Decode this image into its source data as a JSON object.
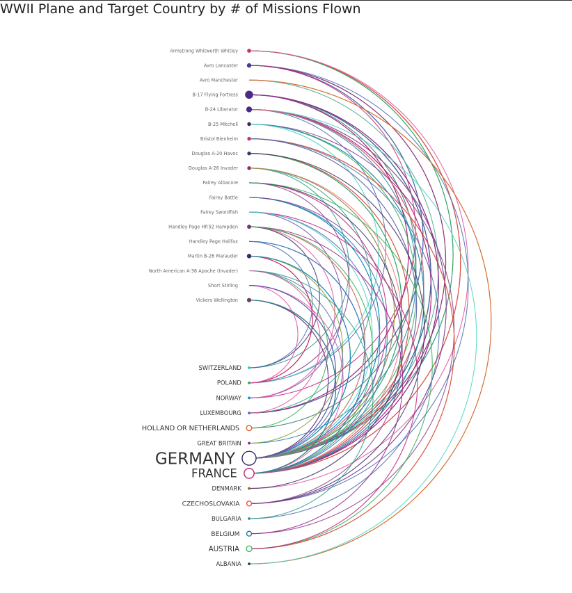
{
  "title": "WWII Plane and Target Country by # of Missions Flown",
  "chart_data": {
    "type": "arc-diagram",
    "title": "WWII Plane and Target Country by # of Missions Flown",
    "planes": [
      {
        "name": "Armstrong Whitworth Whitley",
        "missions": 3,
        "color": "#c0396b"
      },
      {
        "name": "Avro Lancaster",
        "missions": 5,
        "color": "#4b3b8f"
      },
      {
        "name": "Avro Manchester",
        "missions": 1,
        "color": "#c0396b"
      },
      {
        "name": "B-17 Flying Fortress",
        "missions": 40,
        "color": "#4b2a84"
      },
      {
        "name": "B-24 Liberator",
        "missions": 14,
        "color": "#4b2a84"
      },
      {
        "name": "B-25 Mitchell",
        "missions": 2,
        "color": "#3a2466"
      },
      {
        "name": "Bristol Blenheim",
        "missions": 2,
        "color": "#c0396b"
      },
      {
        "name": "Douglas A-20 Havoc",
        "missions": 2,
        "color": "#2e3d6b"
      },
      {
        "name": "Douglas A-26 Invader",
        "missions": 2,
        "color": "#8a2f6a"
      },
      {
        "name": "Fairey Albacore",
        "missions": 1,
        "color": "#ee6f72"
      },
      {
        "name": "Fairey Battle",
        "missions": 1,
        "color": "#8a3a8a"
      },
      {
        "name": "Fairey Swordfish",
        "missions": 1,
        "color": "#47d4c1"
      },
      {
        "name": "Handley Page HP.52 Hampden",
        "missions": 3,
        "color": "#6b3a6b"
      },
      {
        "name": "Handley Page Halifax",
        "missions": 1,
        "color": "#c0396b"
      },
      {
        "name": "Martin B-26 Marauder",
        "missions": 5,
        "color": "#3b2a66"
      },
      {
        "name": "North American A-36 Apache (Invader)",
        "missions": 1,
        "color": "#e04f9e"
      },
      {
        "name": "Short Stirling",
        "missions": 1,
        "color": "#c0396b"
      },
      {
        "name": "Vickers Wellington",
        "missions": 4,
        "color": "#6b3a6b"
      }
    ],
    "countries": [
      {
        "name": "SWITZERLAND",
        "missions": 1,
        "color": "#1fc8b8"
      },
      {
        "name": "POLAND",
        "missions": 1,
        "color": "#2fae54"
      },
      {
        "name": "NORWAY",
        "missions": 1,
        "color": "#138bc8"
      },
      {
        "name": "LUXEMBOURG",
        "missions": 1,
        "color": "#4a6fb3"
      },
      {
        "name": "HOLLAND OR NETHERLANDS",
        "missions": 3,
        "color": "#e8622a"
      },
      {
        "name": "GREAT BRITAIN",
        "missions": 1,
        "color": "#9b1f8a"
      },
      {
        "name": "GERMANY",
        "missions": 60,
        "color": "#3b2a66"
      },
      {
        "name": "FRANCE",
        "missions": 25,
        "color": "#c21f7a"
      },
      {
        "name": "DENMARK",
        "missions": 1,
        "color": "#8a6a10"
      },
      {
        "name": "CZECHOSLOVAKIA",
        "missions": 2,
        "color": "#ef4a3a"
      },
      {
        "name": "BULGARIA",
        "missions": 1,
        "color": "#2a9b8a"
      },
      {
        "name": "BELGIUM",
        "missions": 2,
        "color": "#1f7aa8"
      },
      {
        "name": "AUSTRIA",
        "missions": 4,
        "color": "#3fbf5a"
      },
      {
        "name": "ALBANIA",
        "missions": 1,
        "color": "#2a3a66"
      }
    ],
    "palette": [
      "#e8622a",
      "#4a6fb3",
      "#2fae54",
      "#c21f7a",
      "#8a3a8a",
      "#ee6f72",
      "#47d4c1",
      "#e04f9e",
      "#3b2a66",
      "#1f7aa8",
      "#8a9b3a",
      "#2a9b8a",
      "#ef4a3a",
      "#9b1f8a",
      "#138bc8",
      "#6a4ab0"
    ]
  }
}
